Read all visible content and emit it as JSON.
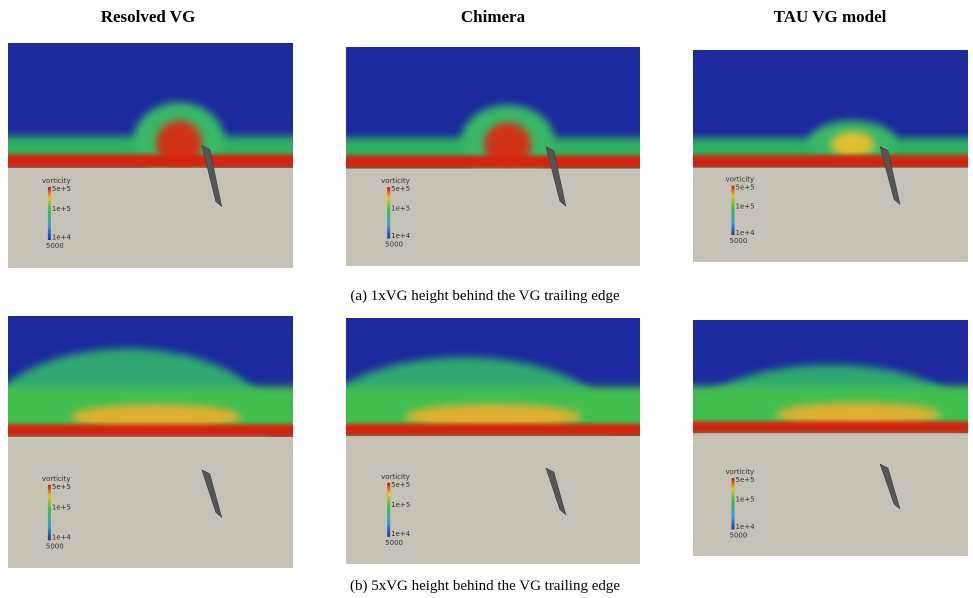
{
  "header": {
    "columns": [
      "Resolved VG",
      "Chimera",
      "TAU VG model"
    ]
  },
  "legend": {
    "title": "vorticity",
    "ticks": [
      "5e+5",
      "1e+5",
      "1e+4",
      "5000"
    ]
  },
  "rows": [
    {
      "caption": "(a) 1xVG height behind the VG trailing edge"
    },
    {
      "caption": "(b) 5xVG height behind the VG trailing edge"
    }
  ]
}
